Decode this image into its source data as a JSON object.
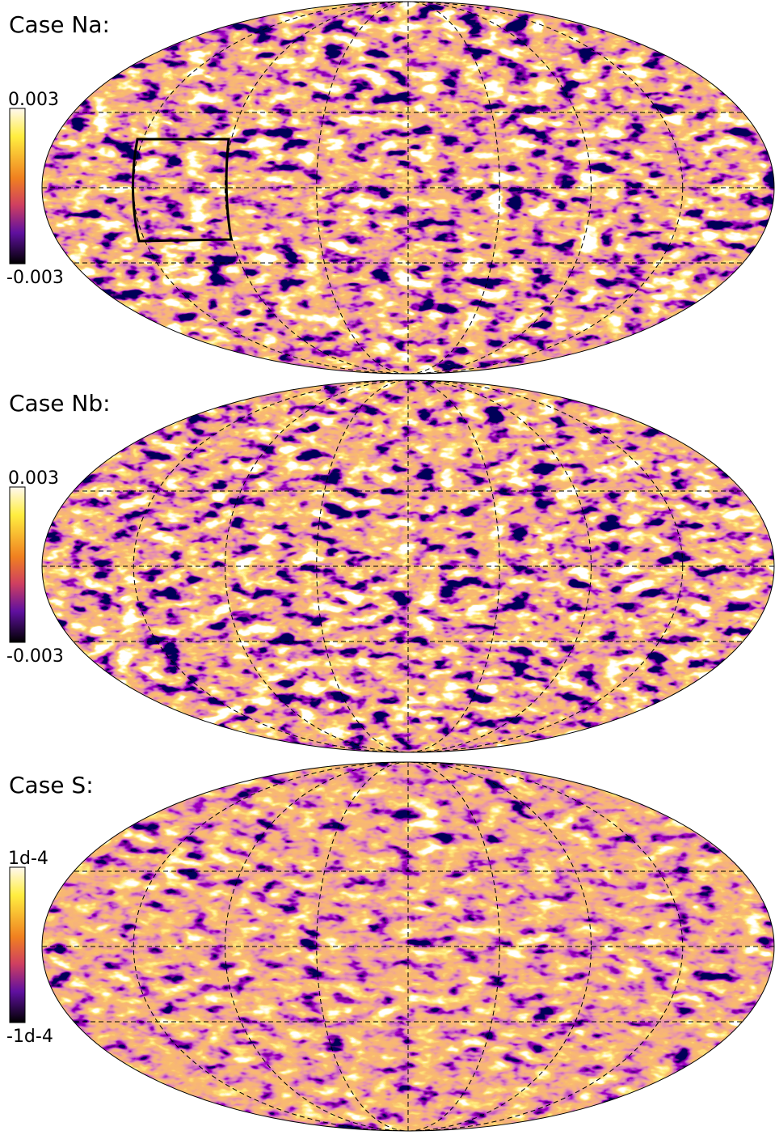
{
  "panels": [
    {
      "title": "Case Na:",
      "colorbar": {
        "max_label": "0.003",
        "min_label": "-0.003"
      }
    },
    {
      "title": "Case Nb:",
      "colorbar": {
        "max_label": "0.003",
        "min_label": "-0.003"
      }
    },
    {
      "title": "Case S:",
      "colorbar": {
        "max_label": "1d-4",
        "min_label": "-1d-4"
      }
    }
  ]
}
